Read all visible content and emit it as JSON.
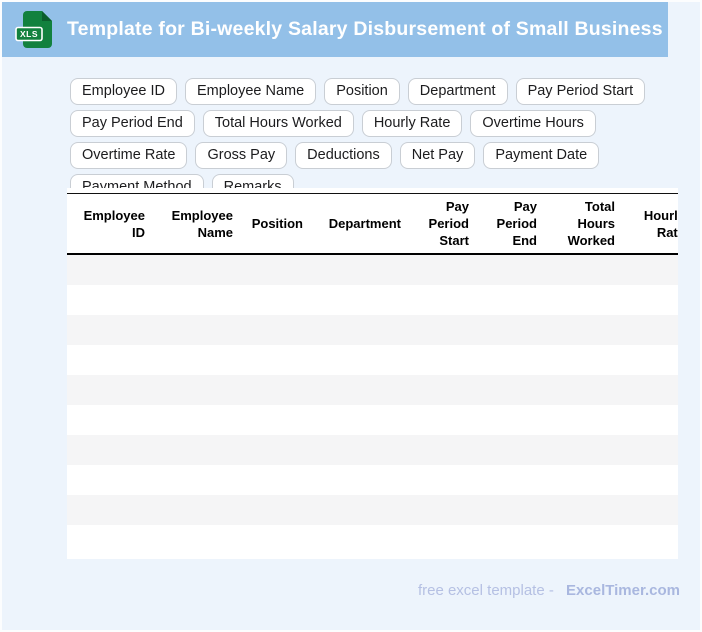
{
  "window": {
    "title": "Template for Bi-weekly Salary Disbursement of Small Business"
  },
  "header": {
    "icon_label": "XLS"
  },
  "theme": {
    "header_bg": "#93c0e8",
    "page_bg": "#edf4fc",
    "icon_green": "#12813e",
    "icon_fold_green": "#0b5e2d",
    "stripe": "#f5f5f6",
    "footer_text": "#b5c0e3",
    "footer_brand": "#a9b7df"
  },
  "tags": [
    "Employee ID",
    "Employee Name",
    "Position",
    "Department",
    "Pay Period Start",
    "Pay Period End",
    "Total Hours Worked",
    "Hourly Rate",
    "Overtime Hours",
    "Overtime Rate",
    "Gross Pay",
    "Deductions",
    "Net Pay",
    "Payment Date",
    "Payment Method",
    "Remarks"
  ],
  "table": {
    "columns": [
      "Employee ID",
      "Employee Name",
      "Position",
      "Department",
      "Pay Period Start",
      "Pay Period End",
      "Total Hours Worked",
      "Hourly Rate"
    ],
    "visible_row_count": 10
  },
  "footer": {
    "prefix": "free excel template -",
    "brand": "ExcelTimer.com"
  }
}
